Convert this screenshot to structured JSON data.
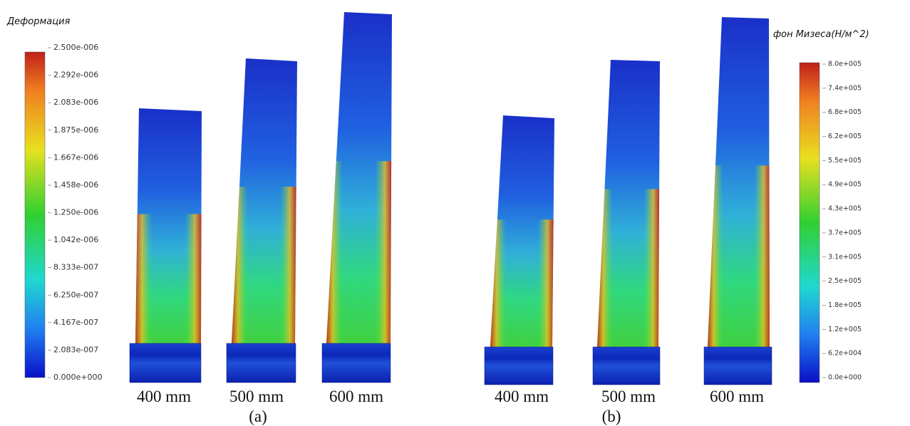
{
  "panel_a": {
    "colorbar_title": "Деформация",
    "ticks": [
      "2.500e-006",
      "2.292e-006",
      "2.083e-006",
      "1.875e-006",
      "1.667e-006",
      "1.458e-006",
      "1.250e-006",
      "1.042e-006",
      "8.333e-007",
      "6.250e-007",
      "4.167e-007",
      "2.083e-007",
      "0.000e+000"
    ],
    "specimens": [
      "400 mm",
      "500 mm",
      "600 mm"
    ],
    "caption": "(a)"
  },
  "panel_b": {
    "colorbar_title": "фон Мизеса(Н/м^2)",
    "ticks": [
      "8.0e+005",
      "7.4e+005",
      "6.8e+005",
      "6.2e+005",
      "5.5e+005",
      "4.9e+005",
      "4.3e+005",
      "3.7e+005",
      "3.1e+005",
      "2.5e+005",
      "1.8e+005",
      "1.2e+005",
      "6.2e+004",
      "0.0e+000"
    ],
    "specimens": [
      "400 mm",
      "500 mm",
      "600 mm"
    ],
    "caption": "(b)"
  }
}
